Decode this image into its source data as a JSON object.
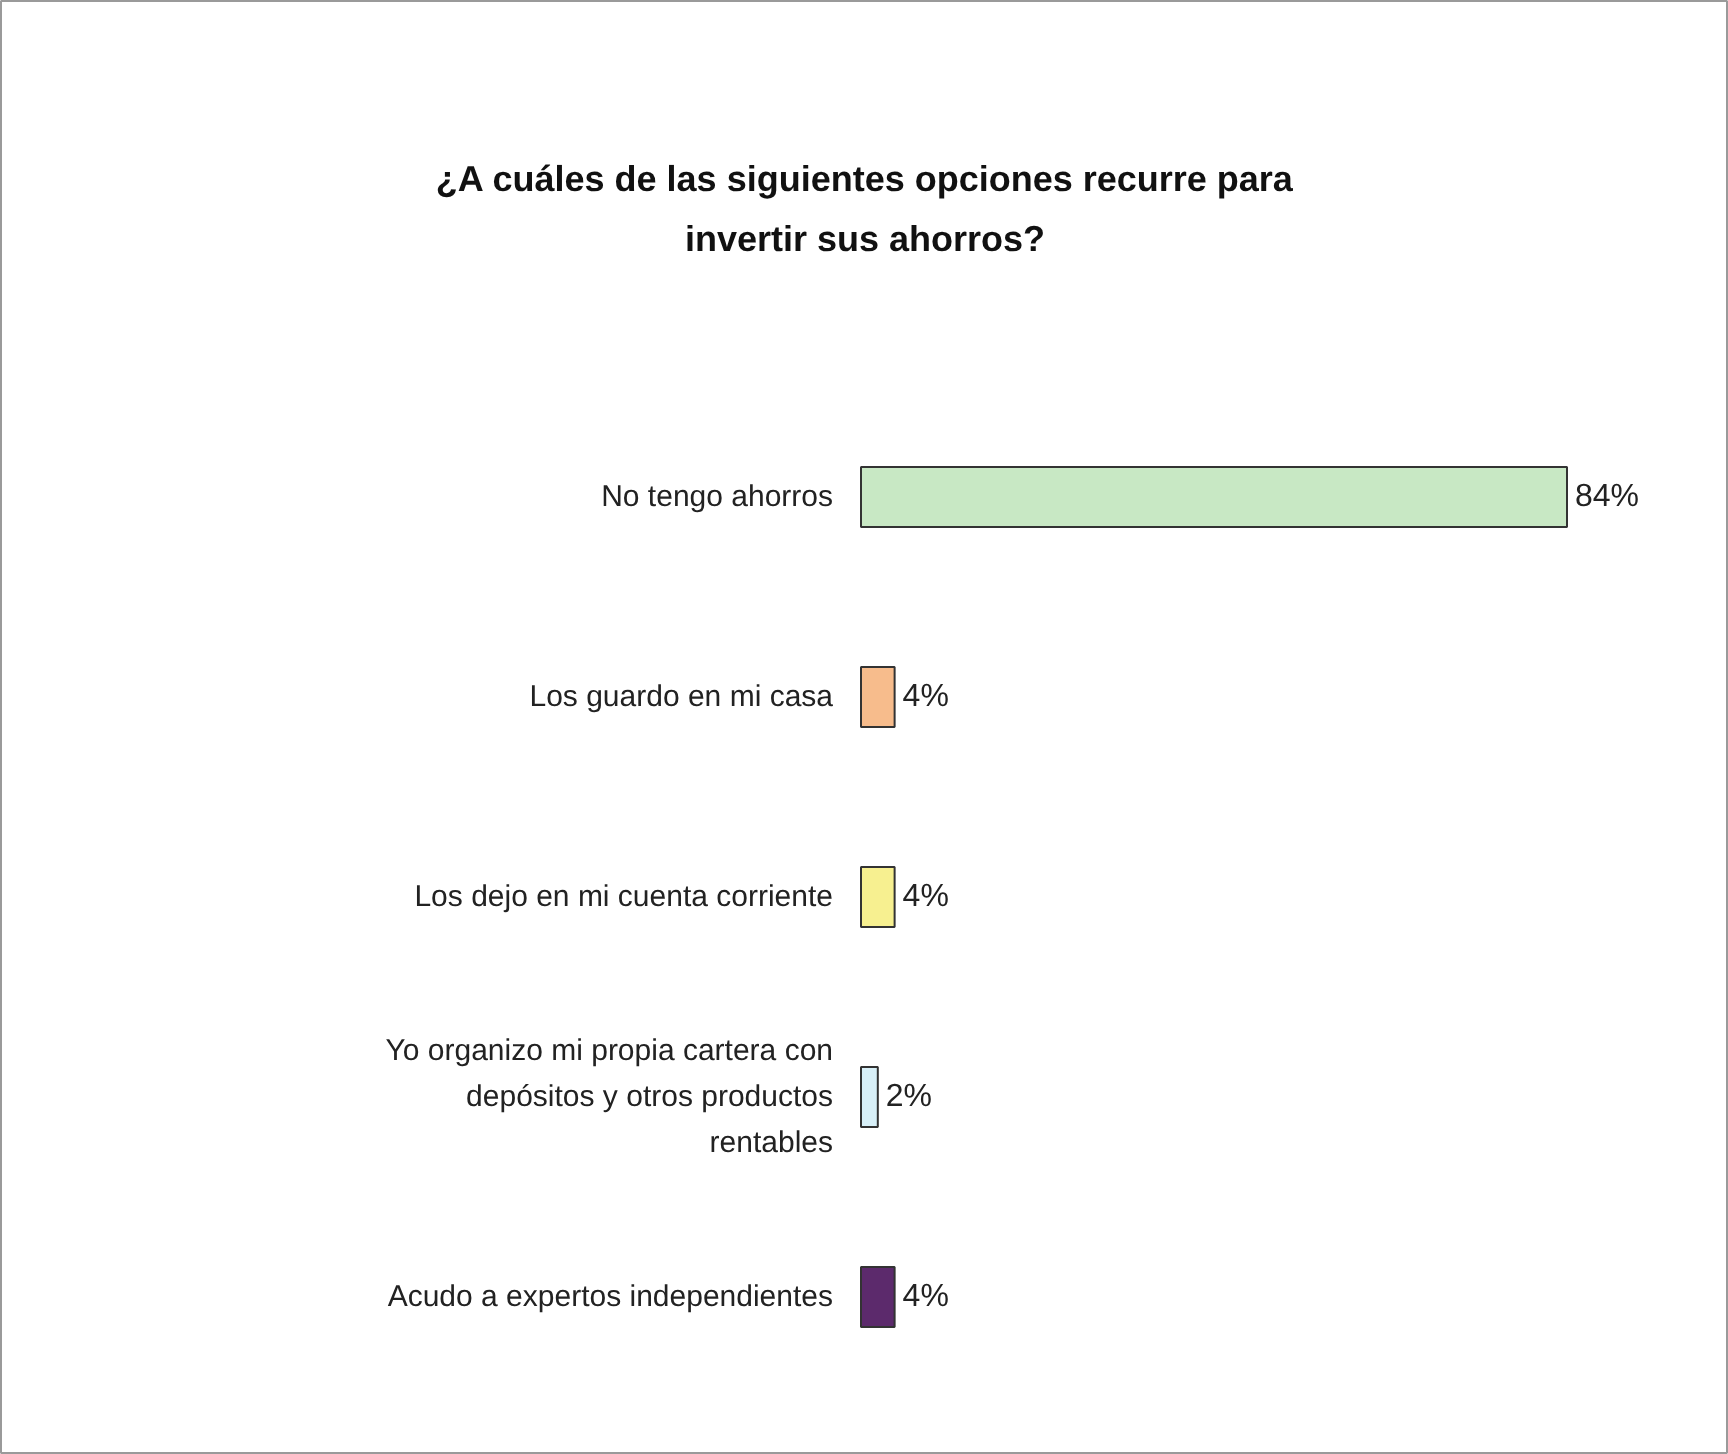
{
  "chart_data": {
    "type": "bar",
    "orientation": "horizontal",
    "title": "¿A cuáles de las siguientes opciones recurre para invertir sus ahorros?",
    "categories": [
      "No tengo ahorros",
      "Los guardo en mi casa",
      "Los dejo en mi cuenta corriente",
      "Yo organizo mi propia cartera con depósitos y otros productos rentables",
      "Acudo a expertos independientes"
    ],
    "values": [
      84,
      4,
      4,
      2,
      4
    ],
    "colors": [
      "#c8e8c4",
      "#f7bc8c",
      "#f7f090",
      "#d8f0f8",
      "#5c2a6c"
    ],
    "value_labels": [
      "84%",
      "4%",
      "4%",
      "2%",
      "4%"
    ],
    "grid": false
  }
}
